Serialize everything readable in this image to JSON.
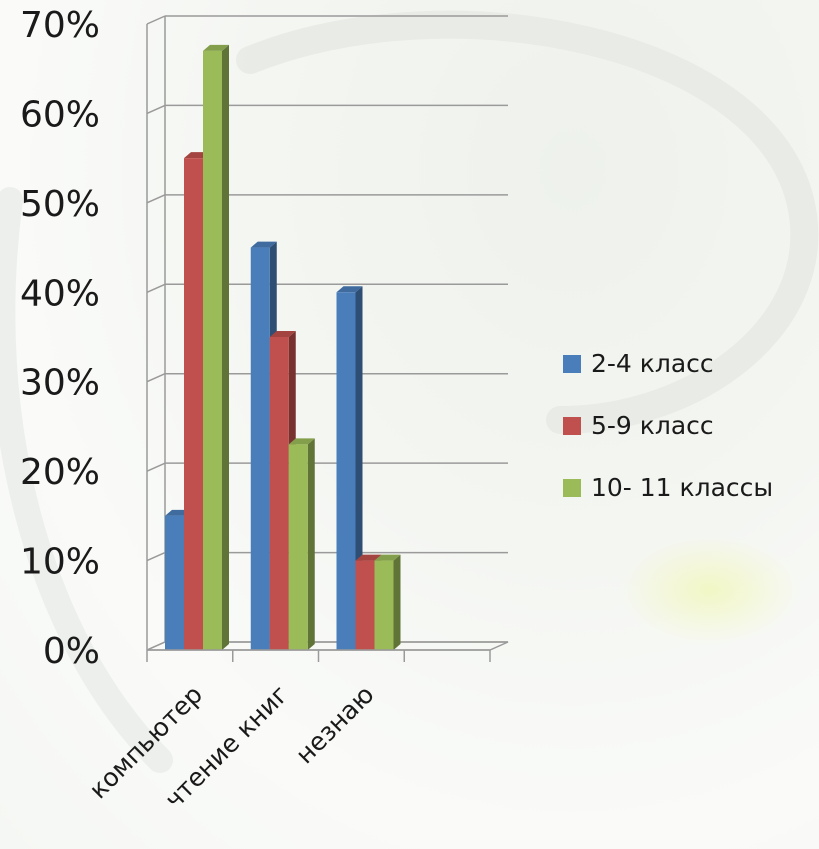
{
  "chart_data": {
    "type": "bar",
    "categories": [
      "компьютер",
      "чтение книг",
      "незнаю"
    ],
    "series": [
      {
        "name": "2-4 класс",
        "values": [
          15,
          45,
          40
        ],
        "color": "#4a7ebb"
      },
      {
        "name": "5-9 класс",
        "values": [
          55,
          35,
          10
        ],
        "color": "#c0504d"
      },
      {
        "name": "10- 11 классы",
        "values": [
          67,
          23,
          10
        ],
        "color": "#9bbb59"
      }
    ],
    "ylim": [
      0,
      70
    ],
    "yticks": [
      "0%",
      "10%",
      "20%",
      "30%",
      "40%",
      "50%",
      "60%",
      "70%"
    ],
    "y_unit": "%",
    "grid": true,
    "legend_position": "right",
    "three_d": true
  }
}
